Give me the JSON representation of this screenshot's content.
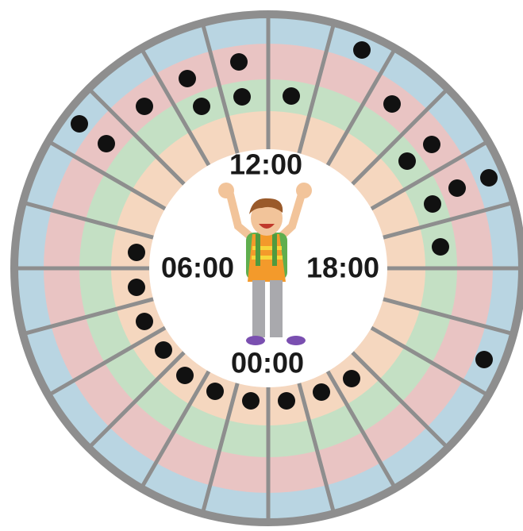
{
  "clock": {
    "labels": {
      "top": "12:00",
      "left": "06:00",
      "right": "18:00",
      "bottom": "00:00"
    }
  }
}
